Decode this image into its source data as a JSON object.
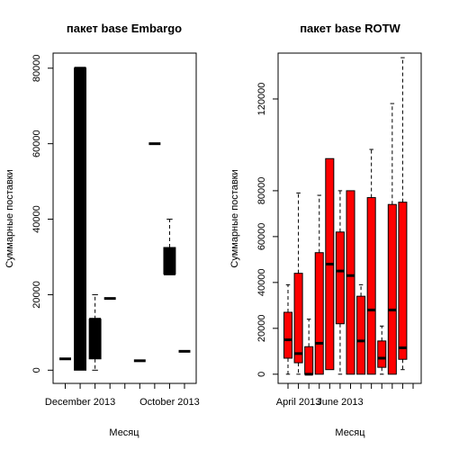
{
  "chart_data": [
    {
      "type": "boxplot",
      "title": "пакет base Embargo",
      "xlabel": "Месяц",
      "ylabel": "Суммарные поставки",
      "ylim": [
        -3500,
        84000
      ],
      "yticks": [
        0,
        20000,
        40000,
        60000,
        80000
      ],
      "ytick_labels": [
        "0",
        "20000",
        "40000",
        "60000",
        "80000"
      ],
      "xtick_labels": [
        {
          "label": "December 2013",
          "pos": 2
        },
        {
          "label": "October 2013",
          "pos": 8
        }
      ],
      "n_positions": 9,
      "box_color": "#000000",
      "boxes": [
        {
          "pos": 1,
          "min": 3000,
          "q1": 3000,
          "median": 3000,
          "q3": 3000,
          "max": 3000
        },
        {
          "pos": 2,
          "min": 0,
          "q1": 0,
          "median": 80000,
          "q3": 80000,
          "max": 80000
        },
        {
          "pos": 3,
          "min": 0,
          "q1": 3000,
          "median": 13500,
          "q3": 13500,
          "max": 20000
        },
        {
          "pos": 4,
          "min": 19000,
          "q1": 19000,
          "median": 19000,
          "q3": 19000,
          "max": 19000
        },
        {
          "pos": 6,
          "min": 2500,
          "q1": 2500,
          "median": 2500,
          "q3": 2500,
          "max": 2500
        },
        {
          "pos": 7,
          "min": 60000,
          "q1": 60000,
          "median": 60000,
          "q3": 60000,
          "max": 60000
        },
        {
          "pos": 8,
          "min": 25500,
          "q1": 25500,
          "median": 25500,
          "q3": 32500,
          "max": 40000
        },
        {
          "pos": 9,
          "min": 5000,
          "q1": 5000,
          "median": 5000,
          "q3": 5000,
          "max": 5000
        }
      ]
    },
    {
      "type": "boxplot",
      "title": "пакет base ROTW",
      "xlabel": "Месяц",
      "ylabel": "Суммарные поставки",
      "ylim": [
        -4000,
        140000
      ],
      "yticks": [
        0,
        20000,
        40000,
        60000,
        80000,
        120000
      ],
      "ytick_labels": [
        "0",
        "20000",
        "40000",
        "60000",
        "80000",
        "120000"
      ],
      "xtick_labels": [
        {
          "label": "April 2013",
          "pos": 2
        },
        {
          "label": "June 2013",
          "pos": 6
        }
      ],
      "n_positions": 13,
      "box_color": "#ff0000",
      "boxes": [
        {
          "pos": 1,
          "min": 0,
          "q1": 7000,
          "median": 15000,
          "q3": 27000,
          "max": 39000
        },
        {
          "pos": 2,
          "min": 0,
          "q1": 5000,
          "median": 9000,
          "q3": 44000,
          "max": 79000
        },
        {
          "pos": 3,
          "min": 0,
          "q1": 0,
          "median": 0,
          "q3": 12000,
          "max": 24000
        },
        {
          "pos": 4,
          "min": 0,
          "q1": 0,
          "median": 13500,
          "q3": 53000,
          "max": 78000
        },
        {
          "pos": 5,
          "min": 2000,
          "q1": 2000,
          "median": 48000,
          "q3": 94000,
          "max": 94000
        },
        {
          "pos": 6,
          "min": 0,
          "q1": 22000,
          "median": 45000,
          "q3": 62000,
          "max": 80000
        },
        {
          "pos": 7,
          "min": 0,
          "q1": 0,
          "median": 43000,
          "q3": 80000,
          "max": 80000
        },
        {
          "pos": 8,
          "min": 0,
          "q1": 0,
          "median": 14500,
          "q3": 34000,
          "max": 39000
        },
        {
          "pos": 9,
          "min": 0,
          "q1": 0,
          "median": 28000,
          "q3": 77000,
          "max": 98000
        },
        {
          "pos": 10,
          "min": 0,
          "q1": 3000,
          "median": 7000,
          "q3": 14500,
          "max": 21000
        },
        {
          "pos": 11,
          "min": 0,
          "q1": 0,
          "median": 28000,
          "q3": 74000,
          "max": 118000
        },
        {
          "pos": 12,
          "min": 2000,
          "q1": 6500,
          "median": 11500,
          "q3": 75000,
          "max": 138000
        }
      ]
    }
  ]
}
